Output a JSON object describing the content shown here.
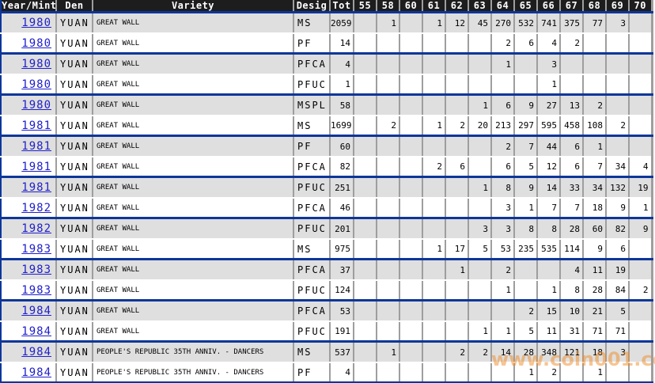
{
  "watermark": {
    "text": "www.coin001.com"
  },
  "colors": {
    "navy": "#0d3699",
    "border-gray": "#9e9e9e",
    "row-gray": "#dfdfdf",
    "header-bg": "#1d1d1d",
    "link-blue": "#2020cc",
    "watermark-orange": "#f08c28"
  },
  "table": {
    "columns": [
      "Year/Mint",
      "Den",
      "Variety",
      "Desig",
      "Tot",
      "55",
      "58",
      "60",
      "61",
      "62",
      "63",
      "64",
      "65",
      "66",
      "67",
      "68",
      "69",
      "70"
    ],
    "grade_columns": [
      "55",
      "58",
      "60",
      "61",
      "62",
      "63",
      "64",
      "65",
      "66",
      "67",
      "68",
      "69",
      "70"
    ],
    "rows": [
      {
        "year": "1980",
        "den": "YUAN",
        "variety": "GREAT WALL",
        "desig": "MS",
        "tot": "2059",
        "grades": [
          "",
          "1",
          "",
          "1",
          "12",
          "45",
          "270",
          "532",
          "741",
          "375",
          "77",
          "3",
          ""
        ]
      },
      {
        "year": "1980",
        "den": "YUAN",
        "variety": "GREAT WALL",
        "desig": "PF",
        "tot": "14",
        "grades": [
          "",
          "",
          "",
          "",
          "",
          "",
          "2",
          "6",
          "4",
          "2",
          "",
          "",
          ""
        ]
      },
      {
        "year": "1980",
        "den": "YUAN",
        "variety": "GREAT WALL",
        "desig": "PFCA",
        "tot": "4",
        "grades": [
          "",
          "",
          "",
          "",
          "",
          "",
          "1",
          "",
          "3",
          "",
          "",
          "",
          ""
        ]
      },
      {
        "year": "1980",
        "den": "YUAN",
        "variety": "GREAT WALL",
        "desig": "PFUC",
        "tot": "1",
        "grades": [
          "",
          "",
          "",
          "",
          "",
          "",
          "",
          "",
          "1",
          "",
          "",
          "",
          ""
        ]
      },
      {
        "year": "1980",
        "den": "YUAN",
        "variety": "GREAT WALL",
        "desig": "MSPL",
        "tot": "58",
        "grades": [
          "",
          "",
          "",
          "",
          "",
          "1",
          "6",
          "9",
          "27",
          "13",
          "2",
          "",
          ""
        ]
      },
      {
        "year": "1981",
        "den": "YUAN",
        "variety": "GREAT WALL",
        "desig": "MS",
        "tot": "1699",
        "grades": [
          "",
          "2",
          "",
          "1",
          "2",
          "20",
          "213",
          "297",
          "595",
          "458",
          "108",
          "2",
          ""
        ]
      },
      {
        "year": "1981",
        "den": "YUAN",
        "variety": "GREAT WALL",
        "desig": "PF",
        "tot": "60",
        "grades": [
          "",
          "",
          "",
          "",
          "",
          "",
          "2",
          "7",
          "44",
          "6",
          "1",
          "",
          ""
        ]
      },
      {
        "year": "1981",
        "den": "YUAN",
        "variety": "GREAT WALL",
        "desig": "PFCA",
        "tot": "82",
        "grades": [
          "",
          "",
          "",
          "2",
          "6",
          "",
          "6",
          "5",
          "12",
          "6",
          "7",
          "34",
          "4"
        ]
      },
      {
        "year": "1981",
        "den": "YUAN",
        "variety": "GREAT WALL",
        "desig": "PFUC",
        "tot": "251",
        "grades": [
          "",
          "",
          "",
          "",
          "",
          "1",
          "8",
          "9",
          "14",
          "33",
          "34",
          "132",
          "19"
        ]
      },
      {
        "year": "1982",
        "den": "YUAN",
        "variety": "GREAT WALL",
        "desig": "PFCA",
        "tot": "46",
        "grades": [
          "",
          "",
          "",
          "",
          "",
          "",
          "3",
          "1",
          "7",
          "7",
          "18",
          "9",
          "1"
        ]
      },
      {
        "year": "1982",
        "den": "YUAN",
        "variety": "GREAT WALL",
        "desig": "PFUC",
        "tot": "201",
        "grades": [
          "",
          "",
          "",
          "",
          "",
          "3",
          "3",
          "8",
          "8",
          "28",
          "60",
          "82",
          "9"
        ]
      },
      {
        "year": "1983",
        "den": "YUAN",
        "variety": "GREAT WALL",
        "desig": "MS",
        "tot": "975",
        "grades": [
          "",
          "",
          "",
          "1",
          "17",
          "5",
          "53",
          "235",
          "535",
          "114",
          "9",
          "6",
          ""
        ]
      },
      {
        "year": "1983",
        "den": "YUAN",
        "variety": "GREAT WALL",
        "desig": "PFCA",
        "tot": "37",
        "grades": [
          "",
          "",
          "",
          "",
          "1",
          "",
          "2",
          "",
          "",
          "4",
          "11",
          "19",
          ""
        ]
      },
      {
        "year": "1983",
        "den": "YUAN",
        "variety": "GREAT WALL",
        "desig": "PFUC",
        "tot": "124",
        "grades": [
          "",
          "",
          "",
          "",
          "",
          "",
          "1",
          "",
          "1",
          "8",
          "28",
          "84",
          "2"
        ]
      },
      {
        "year": "1984",
        "den": "YUAN",
        "variety": "GREAT WALL",
        "desig": "PFCA",
        "tot": "53",
        "grades": [
          "",
          "",
          "",
          "",
          "",
          "",
          "",
          "2",
          "15",
          "10",
          "21",
          "5",
          ""
        ]
      },
      {
        "year": "1984",
        "den": "YUAN",
        "variety": "GREAT WALL",
        "desig": "PFUC",
        "tot": "191",
        "grades": [
          "",
          "",
          "",
          "",
          "",
          "1",
          "1",
          "5",
          "11",
          "31",
          "71",
          "71",
          ""
        ]
      },
      {
        "year": "1984",
        "den": "YUAN",
        "variety": "PEOPLE'S REPUBLIC 35TH ANNIV. - DANCERS",
        "desig": "MS",
        "tot": "537",
        "grades": [
          "",
          "1",
          "",
          "",
          "2",
          "2",
          "14",
          "28",
          "348",
          "121",
          "18",
          "3",
          ""
        ]
      },
      {
        "year": "1984",
        "den": "YUAN",
        "variety": "PEOPLE'S REPUBLIC 35TH ANNIV. - DANCERS",
        "desig": "PF",
        "tot": "4",
        "grades": [
          "",
          "",
          "",
          "",
          "",
          "",
          "",
          "1",
          "2",
          "",
          "1",
          "",
          ""
        ]
      }
    ]
  }
}
